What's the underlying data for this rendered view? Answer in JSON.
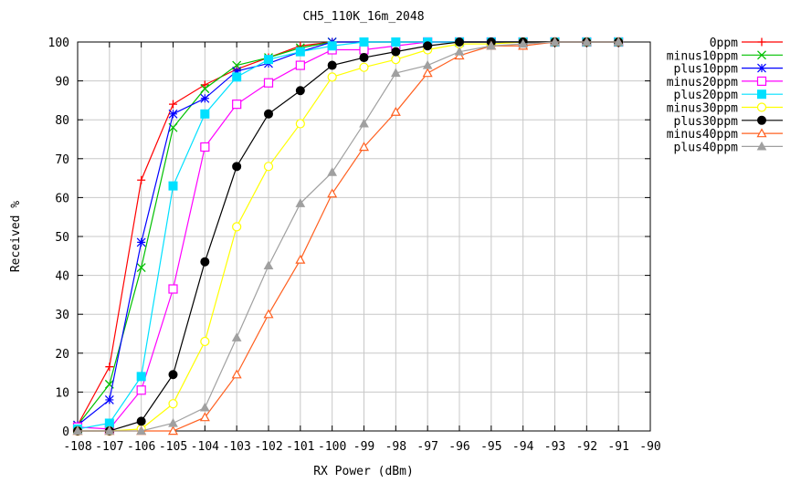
{
  "chart_data": {
    "type": "line",
    "title": "CH5_110K_16m_2048",
    "xlabel": "RX Power (dBm)",
    "ylabel": "Received %",
    "xlim": [
      -108,
      -90
    ],
    "ylim": [
      0,
      100
    ],
    "x_ticks": [
      "-108",
      "-107",
      "-106",
      "-105",
      "-104",
      "-103",
      "-102",
      "-101",
      "-100",
      "-99",
      "-98",
      "-97",
      "-96",
      "-95",
      "-94",
      "-93",
      "-92",
      "-91",
      "-90"
    ],
    "y_ticks": [
      "0",
      "10",
      "20",
      "30",
      "40",
      "50",
      "60",
      "70",
      "80",
      "90",
      "100"
    ],
    "grid": true,
    "legend_position": "right",
    "x": [
      -108,
      -107,
      -106,
      -105,
      -104,
      -103,
      -102,
      -101,
      -100,
      -99,
      -98,
      -97,
      -96,
      -95,
      -94,
      -93,
      -92,
      -91
    ],
    "series": [
      {
        "name": "0ppm",
        "color": "#ff0000",
        "marker": "plus",
        "values": [
          1.5,
          16.5,
          64.5,
          84,
          89,
          93,
          96,
          99,
          100,
          100,
          100,
          100,
          100,
          100,
          100,
          100,
          100,
          100
        ]
      },
      {
        "name": "minus10ppm",
        "color": "#00c000",
        "marker": "cross",
        "values": [
          1.5,
          12,
          42,
          78,
          88,
          94,
          96,
          98.5,
          100,
          100,
          100,
          100,
          100,
          100,
          100,
          100,
          100,
          100
        ]
      },
      {
        "name": "plus10ppm",
        "color": "#0000ff",
        "marker": "star",
        "values": [
          1.5,
          8,
          48.5,
          81.5,
          85.5,
          92.5,
          94.5,
          97.5,
          100,
          100,
          100,
          100,
          100,
          100,
          100,
          100,
          100,
          100
        ]
      },
      {
        "name": "minus20ppm",
        "color": "#ff00ff",
        "marker": "square-open",
        "values": [
          1,
          0.5,
          10.5,
          36.5,
          73,
          84,
          89.5,
          94,
          98,
          98,
          99,
          100,
          100,
          100,
          100,
          100,
          100,
          100
        ]
      },
      {
        "name": "plus20ppm",
        "color": "#00e0ff",
        "marker": "square-filled",
        "values": [
          0.5,
          2,
          14,
          63,
          81.5,
          91,
          95.5,
          97.5,
          99,
          100,
          100,
          100,
          100,
          100,
          100,
          100,
          100,
          100
        ]
      },
      {
        "name": "minus30ppm",
        "color": "#ffff00",
        "marker": "circle-open",
        "values": [
          0,
          0,
          0.5,
          7,
          23,
          52.5,
          68,
          79,
          91,
          93.5,
          95.5,
          98,
          99.5,
          99.5,
          100,
          100,
          100,
          100
        ]
      },
      {
        "name": "plus30ppm",
        "color": "#000000",
        "marker": "circle-filled",
        "values": [
          0,
          0,
          2.5,
          14.5,
          43.5,
          68,
          81.5,
          87.5,
          94,
          96,
          97.5,
          99,
          100,
          100,
          100,
          100,
          100,
          100
        ]
      },
      {
        "name": "minus40ppm",
        "color": "#ff6020",
        "marker": "triangle-open",
        "values": [
          0,
          0,
          0,
          0,
          3.5,
          14.5,
          30,
          44,
          61,
          73,
          82,
          92,
          96.5,
          99,
          99,
          100,
          100,
          100
        ]
      },
      {
        "name": "plus40ppm",
        "color": "#a0a0a0",
        "marker": "triangle-filled",
        "values": [
          0,
          0,
          0,
          2,
          6,
          24,
          42.5,
          58.5,
          66.5,
          79,
          92,
          94,
          97.5,
          99,
          99.5,
          100,
          100,
          100
        ]
      }
    ]
  }
}
